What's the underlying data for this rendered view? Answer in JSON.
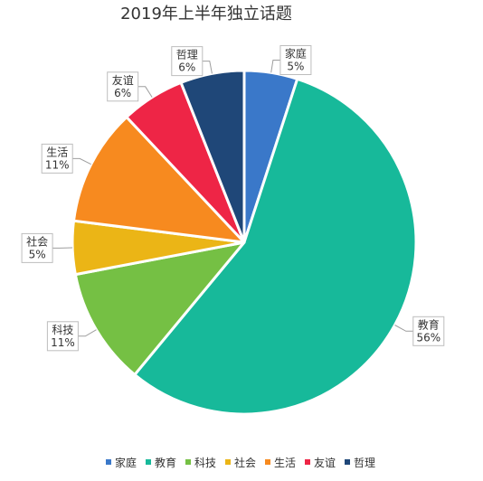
{
  "chart_data": {
    "type": "pie",
    "title": "2019年上半年独立话题",
    "categories": [
      "家庭",
      "教育",
      "科技",
      "社会",
      "生活",
      "友谊",
      "哲理"
    ],
    "values": [
      5,
      56,
      11,
      5,
      11,
      6,
      6
    ],
    "labels": [
      "5%",
      "56%",
      "11%",
      "5%",
      "11%",
      "6%",
      "6%"
    ],
    "colors": [
      "#3a78c9",
      "#17b99a",
      "#75c044",
      "#ebb516",
      "#f78a1f",
      "#ee2546",
      "#1f4778"
    ],
    "legend_position": "bottom"
  }
}
